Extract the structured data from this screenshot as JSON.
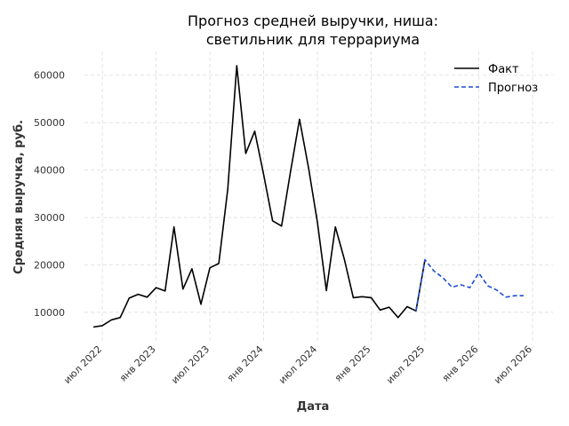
{
  "chart_data": {
    "type": "line",
    "title_lines": [
      "Прогноз средней выручки, ниша:",
      "светильник для террариума"
    ],
    "xlabel": "Дата",
    "ylabel": "Средняя выручка, руб.",
    "x_ticks": [
      {
        "label": "июл 2022",
        "date": "2022-07"
      },
      {
        "label": "янв 2023",
        "date": "2023-01"
      },
      {
        "label": "июл 2023",
        "date": "2023-07"
      },
      {
        "label": "янв 2024",
        "date": "2024-01"
      },
      {
        "label": "июл 2024",
        "date": "2024-07"
      },
      {
        "label": "янв 2025",
        "date": "2025-01"
      },
      {
        "label": "июл 2025",
        "date": "2025-07"
      },
      {
        "label": "янв 2026",
        "date": "2026-01"
      },
      {
        "label": "июл 2026",
        "date": "2026-07"
      }
    ],
    "y_ticks": [
      10000,
      20000,
      30000,
      40000,
      50000,
      60000
    ],
    "xlim": [
      "2022-06",
      "2026-07"
    ],
    "ylim": [
      4000,
      65000
    ],
    "grid": true,
    "legend_position": "top-right",
    "series": [
      {
        "name": "Факт",
        "color": "#000000",
        "dash": "solid",
        "x": [
          "2022-06",
          "2022-07",
          "2022-08",
          "2022-09",
          "2022-10",
          "2022-11",
          "2022-12",
          "2023-01",
          "2023-02",
          "2023-03",
          "2023-04",
          "2023-05",
          "2023-06",
          "2023-07",
          "2023-08",
          "2023-09",
          "2023-10",
          "2023-11",
          "2023-12",
          "2024-01",
          "2024-02",
          "2024-03",
          "2024-04",
          "2024-05",
          "2024-06",
          "2024-07",
          "2024-08",
          "2024-09",
          "2024-10",
          "2024-11",
          "2024-12",
          "2025-01",
          "2025-02",
          "2025-03",
          "2025-04",
          "2025-05",
          "2025-06",
          "2025-07"
        ],
        "values": [
          6900,
          7200,
          8400,
          8900,
          13000,
          13800,
          13200,
          15200,
          14500,
          28000,
          14900,
          19200,
          11700,
          19400,
          20300,
          36000,
          62000,
          43500,
          48200,
          39000,
          29300,
          28200,
          39700,
          50700,
          40500,
          29000,
          14600,
          28000,
          21200,
          13100,
          13300,
          13100,
          10500,
          11100,
          8900,
          11200,
          10300,
          21100
        ]
      },
      {
        "name": "Прогноз",
        "color": "#1f4fd1",
        "dash": "dashed",
        "x": [
          "2025-06",
          "2025-07",
          "2025-08",
          "2025-09",
          "2025-10",
          "2025-11",
          "2025-12",
          "2026-01",
          "2026-02",
          "2026-03",
          "2026-04",
          "2026-05",
          "2026-06"
        ],
        "values": [
          10300,
          21100,
          18700,
          17300,
          15300,
          15800,
          15200,
          18300,
          15600,
          14700,
          13200,
          13500,
          13500
        ]
      }
    ]
  }
}
